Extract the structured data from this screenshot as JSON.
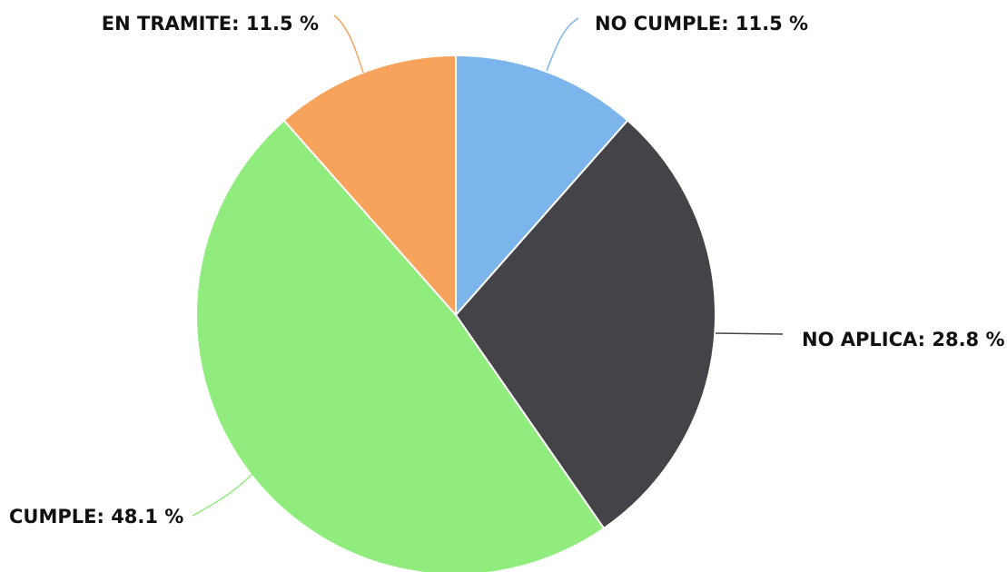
{
  "chart_data": {
    "type": "pie",
    "start_angle_deg": 0,
    "direction": "clockwise",
    "slices": [
      {
        "label": "NO CUMPLE",
        "value": 11.5,
        "display": "NO CUMPLE: 11.5 %",
        "color": "#7cb5ec"
      },
      {
        "label": "NO APLICA",
        "value": 28.8,
        "display": "NO APLICA: 28.8 %",
        "color": "#434348"
      },
      {
        "label": "CUMPLE",
        "value": 48.1,
        "display": "CUMPLE: 48.1 %",
        "color": "#90ed7d"
      },
      {
        "label": "EN TRAMITE",
        "value": 11.5,
        "display": "EN TRAMITE: 11.5 %",
        "color": "#f7a35c"
      }
    ]
  }
}
